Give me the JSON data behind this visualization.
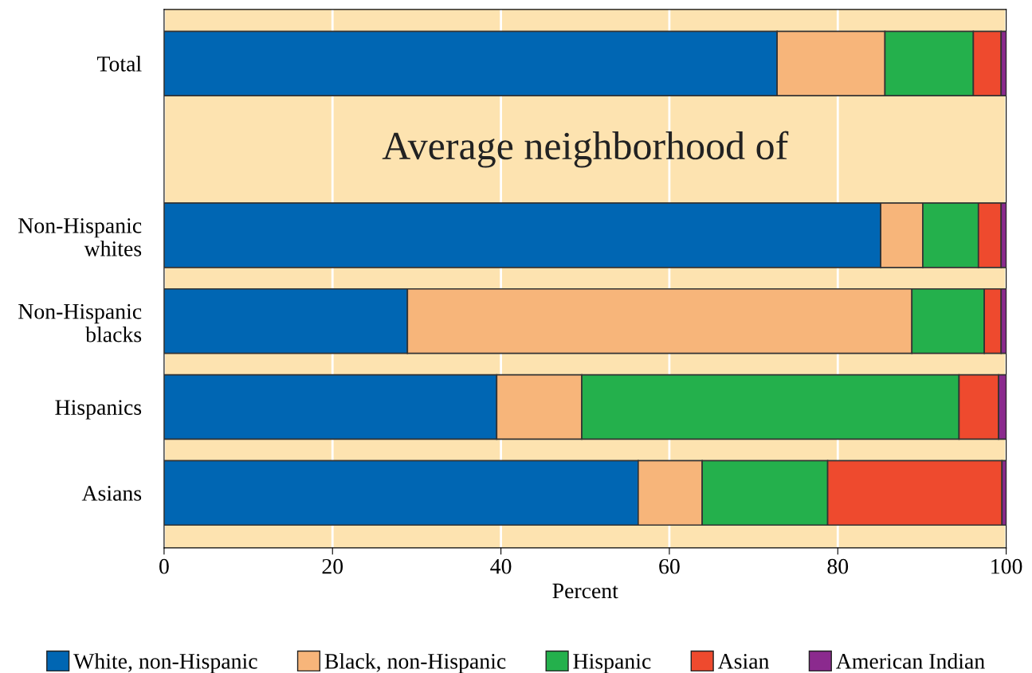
{
  "chart_data": {
    "type": "bar",
    "orientation": "horizontal",
    "stacked": true,
    "categories": [
      "Total",
      null,
      "Non-Hispanic\nwhites",
      "Non-Hispanic\nblacks",
      "Hispanics",
      "Asians"
    ],
    "series": [
      {
        "name": "White, non-Hispanic",
        "color": "#0066b3",
        "values": [
          72.8,
          null,
          85.1,
          28.9,
          39.5,
          56.3
        ]
      },
      {
        "name": "Black, non-Hispanic",
        "color": "#f7b57a",
        "values": [
          12.8,
          null,
          5.0,
          59.9,
          10.1,
          7.6
        ]
      },
      {
        "name": "Hispanic",
        "color": "#24b04c",
        "values": [
          10.5,
          null,
          6.6,
          8.6,
          44.8,
          14.9
        ]
      },
      {
        "name": "Asian",
        "color": "#ee4a2e",
        "values": [
          3.3,
          null,
          2.7,
          2.0,
          4.7,
          20.7
        ]
      },
      {
        "name": "American Indian",
        "color": "#8b2a8e",
        "values": [
          0.6,
          null,
          0.6,
          0.6,
          0.9,
          0.5
        ]
      }
    ],
    "xlim": [
      0,
      100
    ],
    "xticks": [
      0,
      20,
      40,
      60,
      80,
      100
    ],
    "xlabel": "Percent",
    "grid": "x",
    "legend": "bottom",
    "annotations": [
      "Average neighborhood of"
    ]
  }
}
